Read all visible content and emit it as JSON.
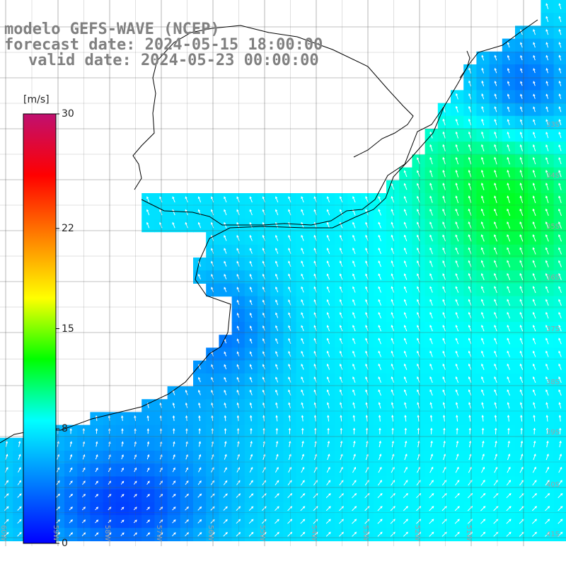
{
  "header": {
    "line1": "modelo GEFS-WAVE (NCEP)",
    "line2": "forecast date: 2024-05-15 18:00:00",
    "line3": "valid date: 2024-05-23 00:00:00"
  },
  "colorbar": {
    "units": "[m/s]",
    "min": 0,
    "max": 30,
    "tick_values": [
      0,
      8,
      15,
      22,
      30
    ],
    "tick_labels": [
      "0",
      "8",
      "15",
      "22",
      "30"
    ],
    "colors": [
      "#0000ff",
      "#0080ff",
      "#00ffff",
      "#00ff00",
      "#ffff00",
      "#ff8000",
      "#ff0000",
      "#c01070"
    ]
  },
  "map": {
    "field": "wind speed and direction",
    "lat_labels": [
      "33S",
      "34S",
      "35S",
      "36S",
      "37S",
      "38S",
      "39S",
      "40S",
      "41S"
    ],
    "lon_labels": [
      "60W",
      "59W",
      "58W",
      "57W",
      "56W",
      "55W",
      "54W",
      "53W",
      "52W",
      "51W"
    ],
    "colors": {
      "land": "#ffffff",
      "coast": "#000000",
      "grid": "#555555",
      "arrow": "#ffffff"
    }
  }
}
